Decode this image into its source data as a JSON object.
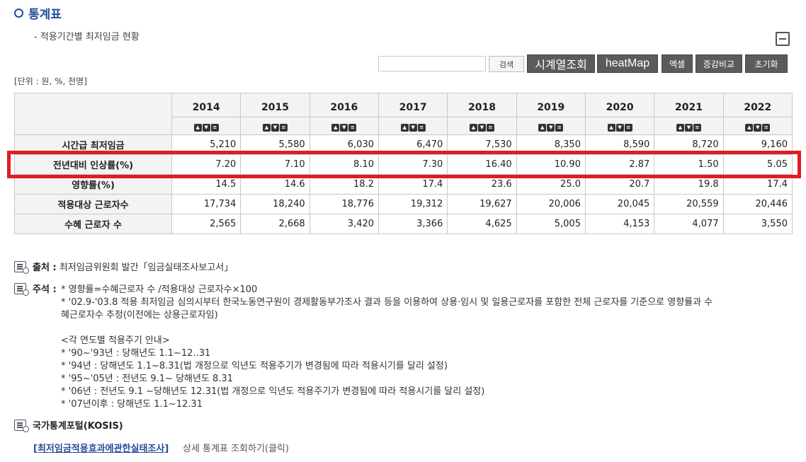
{
  "title": "통계표",
  "subtitle": "- 적용기간별 최저임금 현황",
  "toolbar": {
    "search_placeholder": "",
    "search_label": "검색",
    "timeseries_label": "시계열조회",
    "heatmap_label": "heatMap",
    "excel_label": "엑셀",
    "compare_label": "증감비교",
    "reset_label": "초기화"
  },
  "unit": "[단위 : 원, %, 천명]",
  "table": {
    "years": [
      "2014",
      "2015",
      "2016",
      "2017",
      "2018",
      "2019",
      "2020",
      "2021",
      "2022"
    ],
    "rows": [
      {
        "label": "시간급 최저임금",
        "values": [
          "5,210",
          "5,580",
          "6,030",
          "6,470",
          "7,530",
          "8,350",
          "8,590",
          "8,720",
          "9,160"
        ]
      },
      {
        "label": "전년대비 인상률(%)",
        "values": [
          "7.20",
          "7.10",
          "8.10",
          "7.30",
          "16.40",
          "10.90",
          "2.87",
          "1.50",
          "5.05"
        ]
      },
      {
        "label": "영향률(%)",
        "values": [
          "14.5",
          "14.6",
          "18.2",
          "17.4",
          "23.6",
          "25.0",
          "20.7",
          "19.8",
          "17.4"
        ]
      },
      {
        "label": "적용대상 근로자수",
        "values": [
          "17,734",
          "18,240",
          "18,776",
          "19,312",
          "19,627",
          "20,006",
          "20,045",
          "20,559",
          "20,446"
        ]
      },
      {
        "label": "수혜 근로자 수",
        "values": [
          "2,565",
          "2,668",
          "3,420",
          "3,366",
          "4,625",
          "5,005",
          "4,153",
          "4,077",
          "3,550"
        ]
      }
    ]
  },
  "notes": {
    "source_label": "출처 :",
    "source_text": "최저임금위원회 발간「임금실태조사보고서」",
    "remark_label": "주석 :",
    "remark_lines": [
      "* 영향률=수혜근로자 수 /적용대상 근로자수×100",
      "* '02.9-'03.8 적용 최저임금 심의시부터 한국노동연구원이 경제활동부가조사 결과 등을 이용하여 상용·임시 및 일용근로자를 포함한 전체 근로자를 기준으로 영향률과 수",
      "혜근로자수 추정(이전에는 상용근로자임)",
      "",
      "<각 연도별 적용주기 안내>",
      "* '90~'93년 : 당해년도 1.1~12..31",
      "* '94년 : 당해년도 1.1~8.31(법 개정으로 익년도 적용주기가 변경됨에 따라 적용시기를 달리 설정)",
      "* '95~'05년 : 전년도 9.1~ 당해년도 8.31",
      "* '06년 : 전년도 9.1 ~당해년도 12.31(법 개정으로 익년도 적용주기가 변경됨에 따라 적용시기를 달리 설정)",
      "* '07년이후 : 당해년도 1.1~12.31"
    ],
    "kosis_label": "국가통계포털(KOSIS)",
    "kosis_link": "[최저임금적용효과에관한실태조사]",
    "kosis_tail": "상세 통계표 조회하기(클릭)"
  },
  "colors": {
    "accent": "#1f4e9b",
    "highlight": "#e21b23",
    "button_dark": "#5b5b5b"
  }
}
